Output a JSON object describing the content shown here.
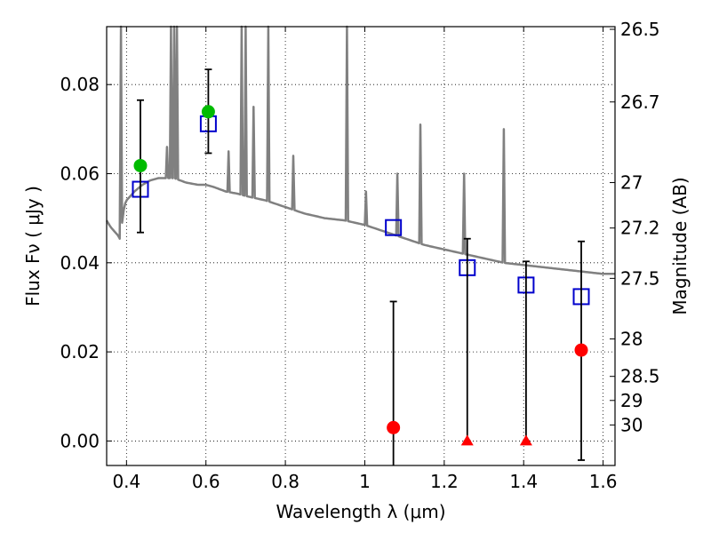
{
  "chart_data": {
    "type": "scatter",
    "xlabel": "Wavelength  λ (μm)",
    "ylabel_left": "Flux  Fν  ( μJy )",
    "ylabel_right": "Magnitude (AB)",
    "xlim": [
      0.35,
      1.63
    ],
    "ylim": [
      -0.0055,
      0.093
    ],
    "grid": true,
    "x_ticks": [
      0.4,
      0.6,
      0.8,
      1.0,
      1.2,
      1.4,
      1.6
    ],
    "x_tick_labels": [
      "0.4",
      "0.6",
      "0.8",
      "1",
      "1.2",
      "1.4",
      "1.6"
    ],
    "y_ticks": [
      0.0,
      0.02,
      0.04,
      0.06,
      0.08
    ],
    "y_tick_labels": [
      "0.00",
      "0.02",
      "0.04",
      "0.06",
      "0.08"
    ],
    "right_ticks": [
      {
        "label": "26.5",
        "flux": 0.0924
      },
      {
        "label": "26.7",
        "flux": 0.0761
      },
      {
        "label": "27",
        "flux": 0.058
      },
      {
        "label": "27.2",
        "flux": 0.0478
      },
      {
        "label": "27.5",
        "flux": 0.0365
      },
      {
        "label": "28",
        "flux": 0.0229
      },
      {
        "label": "28.5",
        "flux": 0.0145
      },
      {
        "label": "29",
        "flux": 0.0091
      },
      {
        "label": "30",
        "flux": 0.0036
      }
    ],
    "series": [
      {
        "marker": "square-open",
        "color": "#0000cc",
        "points": [
          {
            "x": 0.435,
            "y": 0.0565
          },
          {
            "x": 0.606,
            "y": 0.0712
          },
          {
            "x": 1.072,
            "y": 0.0479
          },
          {
            "x": 1.258,
            "y": 0.0389
          },
          {
            "x": 1.406,
            "y": 0.035
          },
          {
            "x": 1.545,
            "y": 0.0324
          }
        ]
      },
      {
        "marker": "circle",
        "color": "#00bb00",
        "points": [
          {
            "x": 0.435,
            "y": 0.0618,
            "err_lo": 0.0468,
            "err_hi": 0.0765
          },
          {
            "x": 0.606,
            "y": 0.0739,
            "err_lo": 0.0646,
            "err_hi": 0.0834
          }
        ]
      },
      {
        "marker": "circle",
        "color": "#ff0000",
        "points": [
          {
            "x": 1.072,
            "y": 0.003,
            "err_lo": -0.0055,
            "err_hi": 0.0313
          },
          {
            "x": 1.545,
            "y": 0.0204,
            "err_lo": -0.0043,
            "err_hi": 0.0448
          }
        ]
      },
      {
        "marker": "triangle",
        "color": "#ff0000",
        "points": [
          {
            "x": 1.258,
            "y": 0.0,
            "err_lo": 0.0,
            "err_hi": 0.0454
          },
          {
            "x": 1.406,
            "y": 0.0,
            "err_lo": 0.0,
            "err_hi": 0.0403
          }
        ]
      },
      {
        "type": "line",
        "color": "#808080",
        "x": [
          0.35,
          0.36,
          0.37,
          0.38,
          0.385,
          0.39,
          0.395,
          0.4,
          0.42,
          0.44,
          0.46,
          0.48,
          0.5,
          0.52,
          0.55,
          0.58,
          0.6,
          0.62,
          0.65,
          0.68,
          0.7,
          0.75,
          0.8,
          0.85,
          0.9,
          0.95,
          1.0,
          1.05,
          1.1,
          1.15,
          1.2,
          1.25,
          1.3,
          1.35,
          1.4,
          1.45,
          1.5,
          1.55,
          1.6,
          1.63
        ],
        "y": [
          0.0495,
          0.048,
          0.047,
          0.046,
          0.045,
          0.05,
          0.053,
          0.054,
          0.056,
          0.0575,
          0.0585,
          0.059,
          0.059,
          0.059,
          0.058,
          0.0575,
          0.0575,
          0.057,
          0.056,
          0.0555,
          0.055,
          0.054,
          0.0525,
          0.051,
          0.05,
          0.0495,
          0.0485,
          0.047,
          0.0455,
          0.044,
          0.043,
          0.042,
          0.041,
          0.04,
          0.0395,
          0.039,
          0.0385,
          0.038,
          0.0375,
          0.0375
        ],
        "emission_lines": [
          {
            "x": 0.386,
            "peak": 0.093
          },
          {
            "x": 0.502,
            "peak": 0.066
          },
          {
            "x": 0.512,
            "peak": 0.093
          },
          {
            "x": 0.52,
            "peak": 0.093
          },
          {
            "x": 0.527,
            "peak": 0.093
          },
          {
            "x": 0.657,
            "peak": 0.065
          },
          {
            "x": 0.69,
            "peak": 0.093
          },
          {
            "x": 0.7,
            "peak": 0.093
          },
          {
            "x": 0.72,
            "peak": 0.075
          },
          {
            "x": 0.757,
            "peak": 0.093
          },
          {
            "x": 0.82,
            "peak": 0.064
          },
          {
            "x": 0.955,
            "peak": 0.093
          },
          {
            "x": 1.003,
            "peak": 0.056
          },
          {
            "x": 1.082,
            "peak": 0.06
          },
          {
            "x": 1.14,
            "peak": 0.071
          },
          {
            "x": 1.25,
            "peak": 0.06
          },
          {
            "x": 1.35,
            "peak": 0.07
          }
        ]
      }
    ]
  }
}
